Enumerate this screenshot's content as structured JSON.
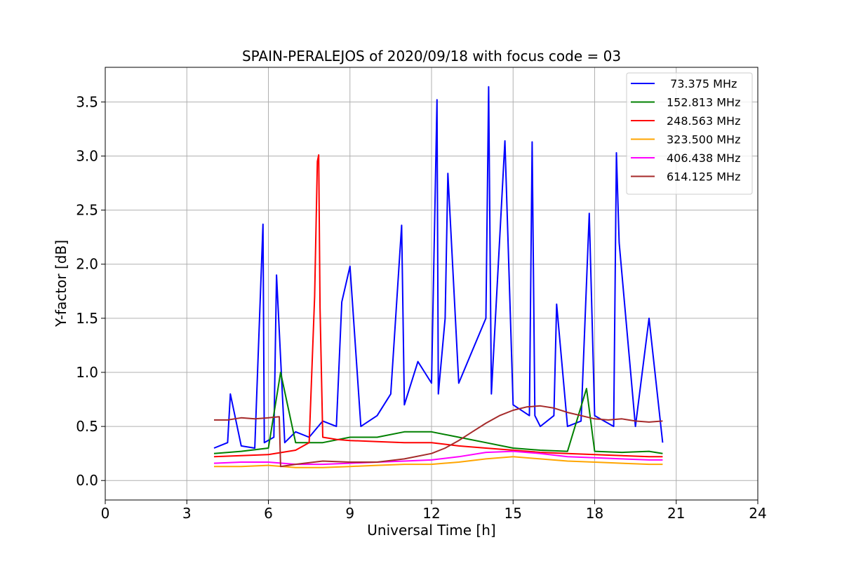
{
  "chart_data": {
    "type": "line",
    "title": "SPAIN-PERALEJOS of 2020/09/18 with focus code = 03",
    "xlabel": "Universal Time [h]",
    "ylabel": "Y-factor [dB]",
    "xlim": [
      0,
      24
    ],
    "ylim": [
      -0.18,
      3.82
    ],
    "xticks": [
      0,
      3,
      6,
      9,
      12,
      15,
      18,
      21,
      24
    ],
    "xtick_labels": [
      "0",
      "3",
      "6",
      "9",
      "12",
      "15",
      "18",
      "21",
      "24"
    ],
    "yticks": [
      0.0,
      0.5,
      1.0,
      1.5,
      2.0,
      2.5,
      3.0,
      3.5
    ],
    "ytick_labels": [
      "0.0",
      "0.5",
      "1.0",
      "1.5",
      "2.0",
      "2.5",
      "3.0",
      "3.5"
    ],
    "grid": true,
    "legend_position": "top-right",
    "series": [
      {
        "name": " 73.375 MHz",
        "color": "#0000ff",
        "x": [
          4.0,
          4.5,
          4.6,
          5.0,
          5.5,
          5.8,
          5.85,
          6.2,
          6.3,
          6.6,
          7.0,
          7.5,
          8.0,
          8.5,
          8.7,
          9.0,
          9.4,
          10.0,
          10.5,
          10.9,
          11.0,
          11.5,
          12.0,
          12.2,
          12.25,
          12.5,
          12.6,
          13.0,
          13.5,
          14.0,
          14.1,
          14.2,
          14.7,
          15.0,
          15.6,
          15.7,
          15.8,
          16.0,
          16.5,
          16.6,
          17.0,
          17.5,
          17.8,
          18.0,
          18.7,
          18.8,
          18.9,
          19.5,
          20.0,
          20.5
        ],
        "y": [
          0.3,
          0.35,
          0.8,
          0.32,
          0.3,
          2.37,
          0.35,
          0.4,
          1.9,
          0.35,
          0.45,
          0.4,
          0.55,
          0.5,
          1.65,
          1.98,
          0.5,
          0.6,
          0.8,
          2.36,
          0.7,
          1.1,
          0.9,
          3.52,
          0.8,
          1.5,
          2.84,
          0.9,
          1.2,
          1.5,
          3.64,
          0.8,
          3.14,
          0.7,
          0.6,
          3.13,
          0.6,
          0.5,
          0.6,
          1.63,
          0.5,
          0.55,
          2.47,
          0.6,
          0.5,
          3.03,
          2.2,
          0.5,
          1.5,
          0.35
        ]
      },
      {
        "name": "152.813 MHz",
        "color": "#008000",
        "x": [
          4.0,
          5.0,
          6.0,
          6.45,
          7.0,
          8.0,
          9.0,
          10.0,
          11.0,
          12.0,
          13.0,
          14.0,
          15.0,
          16.0,
          17.0,
          17.7,
          18.0,
          19.0,
          20.0,
          20.5
        ],
        "y": [
          0.25,
          0.27,
          0.3,
          1.0,
          0.35,
          0.35,
          0.4,
          0.4,
          0.45,
          0.45,
          0.4,
          0.35,
          0.3,
          0.28,
          0.27,
          0.85,
          0.27,
          0.26,
          0.27,
          0.25
        ]
      },
      {
        "name": "248.563 MHz",
        "color": "#ff0000",
        "x": [
          4.0,
          5.0,
          6.0,
          7.0,
          7.5,
          7.7,
          7.8,
          7.85,
          7.9,
          8.0,
          8.5,
          9.0,
          10.0,
          11.0,
          12.0,
          13.0,
          14.0,
          15.0,
          16.0,
          17.0,
          18.0,
          19.0,
          20.0,
          20.5
        ],
        "y": [
          0.22,
          0.23,
          0.24,
          0.28,
          0.35,
          1.7,
          2.95,
          3.01,
          1.6,
          0.4,
          0.38,
          0.37,
          0.36,
          0.35,
          0.35,
          0.32,
          0.3,
          0.28,
          0.26,
          0.25,
          0.24,
          0.23,
          0.22,
          0.22
        ]
      },
      {
        "name": "323.500 MHz",
        "color": "#ffa500",
        "x": [
          4.0,
          5.0,
          6.0,
          7.0,
          8.0,
          9.0,
          10.0,
          11.0,
          12.0,
          13.0,
          14.0,
          15.0,
          16.0,
          17.0,
          18.0,
          19.0,
          20.0,
          20.5
        ],
        "y": [
          0.13,
          0.13,
          0.14,
          0.12,
          0.12,
          0.13,
          0.14,
          0.15,
          0.15,
          0.17,
          0.2,
          0.22,
          0.2,
          0.18,
          0.17,
          0.16,
          0.15,
          0.15
        ]
      },
      {
        "name": "406.438 MHz",
        "color": "#ff00ff",
        "x": [
          4.0,
          5.0,
          6.0,
          7.0,
          8.0,
          9.0,
          10.0,
          11.0,
          12.0,
          13.0,
          14.0,
          15.0,
          16.0,
          17.0,
          18.0,
          19.0,
          20.0,
          20.5
        ],
        "y": [
          0.16,
          0.17,
          0.17,
          0.15,
          0.15,
          0.16,
          0.17,
          0.18,
          0.19,
          0.22,
          0.26,
          0.27,
          0.25,
          0.22,
          0.21,
          0.2,
          0.19,
          0.19
        ]
      },
      {
        "name": "614.125 MHz",
        "color": "#a52a2a",
        "x": [
          4.0,
          4.5,
          5.0,
          5.5,
          6.0,
          6.4,
          6.45,
          7.0,
          8.0,
          9.0,
          10.0,
          11.0,
          12.0,
          12.5,
          13.0,
          13.5,
          14.0,
          14.5,
          15.0,
          15.5,
          16.0,
          16.5,
          17.0,
          17.5,
          18.0,
          18.5,
          19.0,
          19.5,
          20.0,
          20.5
        ],
        "y": [
          0.56,
          0.56,
          0.58,
          0.57,
          0.58,
          0.59,
          0.13,
          0.15,
          0.18,
          0.17,
          0.17,
          0.2,
          0.25,
          0.3,
          0.37,
          0.45,
          0.53,
          0.6,
          0.65,
          0.68,
          0.69,
          0.67,
          0.63,
          0.6,
          0.57,
          0.56,
          0.57,
          0.55,
          0.54,
          0.55
        ]
      }
    ]
  }
}
